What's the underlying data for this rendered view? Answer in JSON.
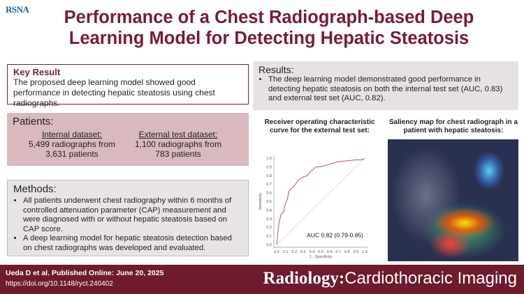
{
  "logo": "RSNA",
  "title": "Performance of a Chest Radiograph-based Deep Learning Model for Detecting Hepatic Steatosis",
  "key_result": {
    "heading": "Key Result",
    "text": "The proposed deep learning model showed good performance in detecting hepatic steatosis using chest radiographs."
  },
  "patients": {
    "heading": "Patients:",
    "internal": {
      "label": "Internal dataset:",
      "line1": "5,499 radiographs from",
      "line2": "3,631 patients"
    },
    "external": {
      "label": "External test dataset:",
      "line1": "1,100 radiographs from",
      "line2": "783 patients"
    }
  },
  "methods": {
    "heading": "Methods:",
    "items": [
      "All patients underwent chest radiography within 6 months of controlled attenuation parameter (CAP) measurement and were diagnosed with or without hepatic steatosis based on CAP score.",
      "A deep learning model for hepatic steatosis detection based on chest radiographs was developed and evaluated."
    ]
  },
  "results": {
    "heading": "Results:",
    "items": [
      "The deep learning model demonstrated good performance in detecting hepatic steatosis on both the internal test set (AUC, 0.83) and external test set (AUC, 0.82)."
    ]
  },
  "saliency_title": "Saliency map for chest radiograph in a patient with hepatic steatosis:",
  "chart_data": {
    "type": "line",
    "title": "Receiver operating characteristic curve for the external test set:",
    "xlabel": "1 - Specificity",
    "ylabel": "Sensitivity",
    "xlim": [
      0,
      1
    ],
    "ylim": [
      0,
      1
    ],
    "ticks": [
      "0.0",
      "0.1",
      "0.2",
      "0.3",
      "0.4",
      "0.5",
      "0.6",
      "0.7",
      "0.8",
      "0.9",
      "1.0"
    ],
    "annotation": "AUC 0.82 (0.79-0.85)",
    "series": [
      {
        "name": "ROC",
        "color": "#c0506a",
        "x": [
          0,
          0.01,
          0.02,
          0.03,
          0.05,
          0.08,
          0.1,
          0.12,
          0.14,
          0.17,
          0.2,
          0.25,
          0.3,
          0.35,
          0.4,
          0.45,
          0.5,
          0.6,
          0.7,
          0.8,
          0.9,
          0.97,
          1
        ],
        "y": [
          0,
          0.1,
          0.2,
          0.27,
          0.35,
          0.38,
          0.48,
          0.52,
          0.62,
          0.65,
          0.68,
          0.75,
          0.78,
          0.8,
          0.86,
          0.9,
          0.9,
          0.93,
          0.96,
          0.97,
          0.98,
          0.98,
          1
        ]
      },
      {
        "name": "chance",
        "color": "#e8d0d5",
        "x": [
          0,
          1
        ],
        "y": [
          0,
          1
        ]
      }
    ]
  },
  "footer": {
    "citation": "Ueda D et al. Published Online: June 20, 2025",
    "doi": "https://doi.org/10.1148/ryct.240402",
    "journal": "Radiology:",
    "journal_sub": "Cardiothoracic Imaging"
  }
}
